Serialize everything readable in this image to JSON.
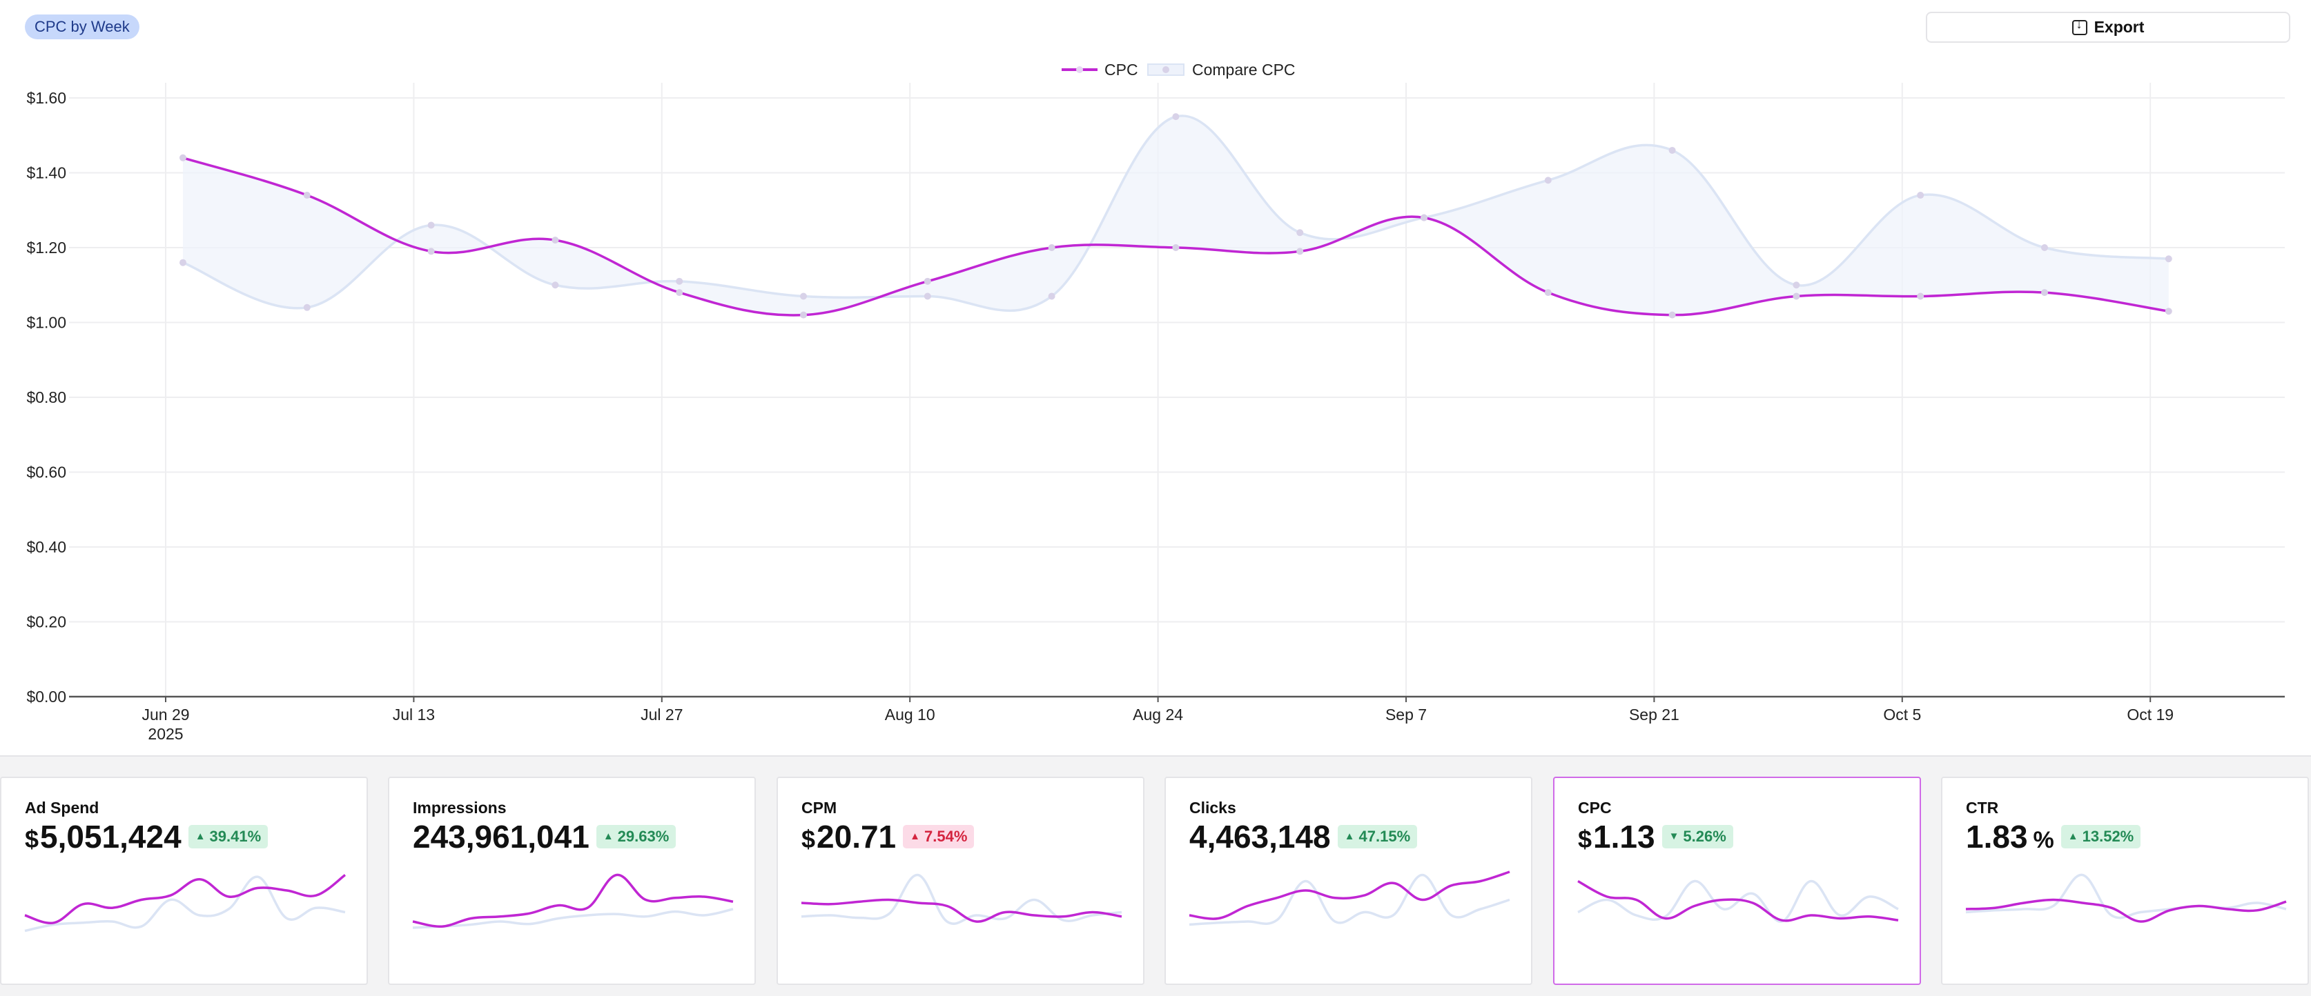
{
  "header": {
    "chart_label": "CPC by Week",
    "export_label": "Export"
  },
  "chart_data": {
    "type": "line",
    "title": "",
    "ylabel": "",
    "xlabel": "",
    "ylim": [
      0,
      1.6
    ],
    "yticks": [
      "$0.00",
      "$0.20",
      "$0.40",
      "$0.60",
      "$0.80",
      "$1.00",
      "$1.20",
      "$1.40",
      "$1.60"
    ],
    "xticks": [
      {
        "label": "Jun 29",
        "sub": "2025",
        "week": 0
      },
      {
        "label": "Jul 13",
        "sub": "",
        "week": 2
      },
      {
        "label": "Jul 27",
        "sub": "",
        "week": 4
      },
      {
        "label": "Aug 10",
        "sub": "",
        "week": 6
      },
      {
        "label": "Aug 24",
        "sub": "",
        "week": 8
      },
      {
        "label": "Sep 7",
        "sub": "",
        "week": 10
      },
      {
        "label": "Sep 21",
        "sub": "",
        "week": 12
      },
      {
        "label": "Oct 5",
        "sub": "",
        "week": 14
      },
      {
        "label": "Oct 19",
        "sub": "",
        "week": 16
      }
    ],
    "legend": "top-center",
    "series": [
      {
        "name": "CPC",
        "color": "#c026d3",
        "values": [
          1.44,
          1.34,
          1.19,
          1.22,
          1.08,
          1.02,
          1.11,
          1.2,
          1.2,
          1.19,
          1.28,
          1.08,
          1.02,
          1.07,
          1.07,
          1.08,
          1.03
        ]
      },
      {
        "name": "Compare CPC",
        "color": "#dbe4f4",
        "values": [
          1.16,
          1.04,
          1.26,
          1.1,
          1.11,
          1.07,
          1.07,
          1.07,
          1.55,
          1.24,
          1.28,
          1.38,
          1.46,
          1.1,
          1.34,
          1.2,
          1.17
        ]
      }
    ]
  },
  "cards": [
    {
      "title": "Ad Spend",
      "prefix": "$",
      "value": "5,051,424",
      "suffix": "",
      "change": "39.41%",
      "direction": "up",
      "status": "good",
      "active": false,
      "spark_main": [
        0.3,
        0.18,
        0.48,
        0.42,
        0.55,
        0.62,
        0.88,
        0.6,
        0.74,
        0.7,
        0.62,
        0.95
      ],
      "spark_compare": [
        0.05,
        0.15,
        0.18,
        0.2,
        0.12,
        0.55,
        0.3,
        0.4,
        0.92,
        0.25,
        0.42,
        0.35
      ]
    },
    {
      "title": "Impressions",
      "prefix": "",
      "value": "243,961,041",
      "suffix": "",
      "change": "29.63%",
      "direction": "up",
      "status": "good",
      "active": false,
      "spark_main": [
        0.2,
        0.12,
        0.25,
        0.28,
        0.33,
        0.46,
        0.42,
        0.95,
        0.55,
        0.58,
        0.6,
        0.52
      ],
      "spark_compare": [
        0.1,
        0.12,
        0.15,
        0.2,
        0.16,
        0.25,
        0.3,
        0.32,
        0.28,
        0.36,
        0.3,
        0.4
      ]
    },
    {
      "title": "CPM",
      "prefix": "$",
      "value": "20.71",
      "suffix": "",
      "change": "7.54%",
      "direction": "up",
      "status": "bad",
      "active": false,
      "spark_main": [
        0.5,
        0.48,
        0.52,
        0.55,
        0.5,
        0.45,
        0.2,
        0.35,
        0.3,
        0.28,
        0.35,
        0.28
      ],
      "spark_compare": [
        0.28,
        0.3,
        0.26,
        0.32,
        0.95,
        0.2,
        0.3,
        0.25,
        0.55,
        0.22,
        0.3,
        0.35
      ]
    },
    {
      "title": "Clicks",
      "prefix": "",
      "value": "4,463,148",
      "suffix": "",
      "change": "47.15%",
      "direction": "up",
      "status": "good",
      "active": false,
      "spark_main": [
        0.3,
        0.25,
        0.45,
        0.58,
        0.7,
        0.58,
        0.62,
        0.82,
        0.55,
        0.78,
        0.85,
        1.0
      ],
      "spark_compare": [
        0.15,
        0.18,
        0.2,
        0.22,
        0.85,
        0.2,
        0.35,
        0.3,
        0.95,
        0.3,
        0.4,
        0.55
      ]
    },
    {
      "title": "CPC",
      "prefix": "$",
      "value": "1.13",
      "suffix": "",
      "change": "5.26%",
      "direction": "down",
      "status": "good",
      "active": true,
      "spark_main": [
        0.85,
        0.6,
        0.55,
        0.25,
        0.45,
        0.55,
        0.5,
        0.22,
        0.3,
        0.25,
        0.28,
        0.22
      ],
      "spark_compare": [
        0.35,
        0.55,
        0.3,
        0.28,
        0.85,
        0.4,
        0.65,
        0.2,
        0.85,
        0.3,
        0.6,
        0.4
      ]
    },
    {
      "title": "CTR",
      "prefix": "",
      "value": "1.83",
      "suffix": "%",
      "change": "13.52%",
      "direction": "up",
      "status": "good",
      "active": false,
      "spark_main": [
        0.4,
        0.42,
        0.5,
        0.55,
        0.5,
        0.42,
        0.2,
        0.38,
        0.45,
        0.4,
        0.38,
        0.52
      ],
      "spark_compare": [
        0.35,
        0.38,
        0.4,
        0.45,
        0.95,
        0.3,
        0.35,
        0.4,
        0.45,
        0.42,
        0.5,
        0.4
      ]
    }
  ]
}
